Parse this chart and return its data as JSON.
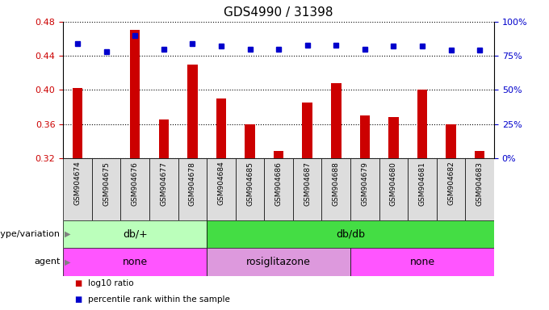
{
  "title": "GDS4990 / 31398",
  "samples": [
    "GSM904674",
    "GSM904675",
    "GSM904676",
    "GSM904677",
    "GSM904678",
    "GSM904684",
    "GSM904685",
    "GSM904686",
    "GSM904687",
    "GSM904688",
    "GSM904679",
    "GSM904680",
    "GSM904681",
    "GSM904682",
    "GSM904683"
  ],
  "log10_ratio": [
    0.402,
    0.318,
    0.47,
    0.365,
    0.43,
    0.39,
    0.36,
    0.328,
    0.385,
    0.408,
    0.37,
    0.368,
    0.4,
    0.36,
    0.328
  ],
  "percentile_rank": [
    84,
    78,
    90,
    80,
    84,
    82,
    80,
    80,
    83,
    83,
    80,
    82,
    82,
    79,
    79
  ],
  "ylim_left": [
    0.32,
    0.48
  ],
  "ylim_right": [
    0,
    100
  ],
  "yticks_left": [
    0.32,
    0.36,
    0.4,
    0.44,
    0.48
  ],
  "yticks_right": [
    0,
    25,
    50,
    75,
    100
  ],
  "bar_color": "#cc0000",
  "dot_color": "#0000cc",
  "genotype_groups": [
    {
      "label": "db/+",
      "start": 0,
      "end": 5,
      "color": "#bbffbb"
    },
    {
      "label": "db/db",
      "start": 5,
      "end": 15,
      "color": "#44dd44"
    }
  ],
  "agent_groups": [
    {
      "label": "none",
      "start": 0,
      "end": 5,
      "color": "#ff55ff"
    },
    {
      "label": "rosiglitazone",
      "start": 5,
      "end": 10,
      "color": "#dd99dd"
    },
    {
      "label": "none",
      "start": 10,
      "end": 15,
      "color": "#ff55ff"
    }
  ],
  "legend_items": [
    {
      "label": "log10 ratio",
      "color": "#cc0000"
    },
    {
      "label": "percentile rank within the sample",
      "color": "#0000cc"
    }
  ],
  "label_row1": "genotype/variation",
  "label_row2": "agent",
  "baseline": 0.32
}
